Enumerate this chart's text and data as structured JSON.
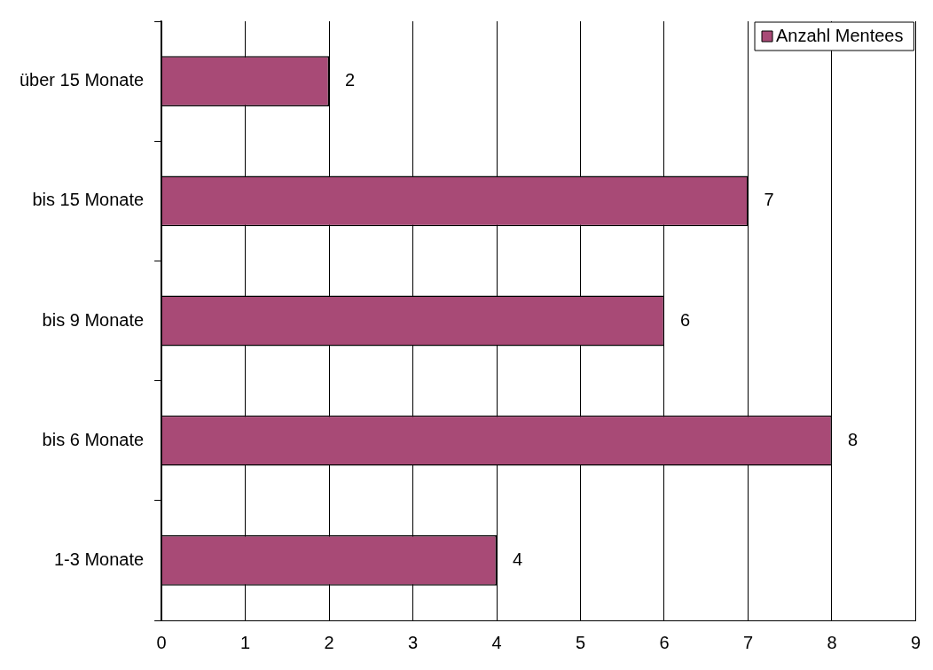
{
  "chart_data": {
    "type": "bar",
    "orientation": "horizontal",
    "categories": [
      "über 15 Monate",
      "bis 15 Monate",
      "bis 9 Monate",
      "bis 6 Monate",
      "1-3 Monate"
    ],
    "series": [
      {
        "name": "Anzahl Mentees",
        "color": "#a84a76",
        "values": [
          2,
          7,
          6,
          8,
          4
        ]
      }
    ],
    "xlim": [
      0,
      9
    ],
    "xticks": [
      0,
      1,
      2,
      3,
      4,
      5,
      6,
      7,
      8,
      9
    ],
    "grid": "x",
    "legend": "top right",
    "data_labels": true
  }
}
